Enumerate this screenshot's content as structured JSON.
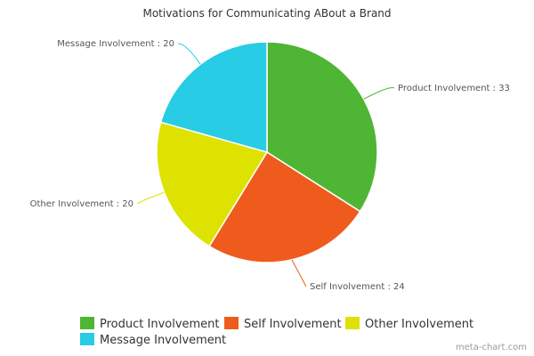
{
  "chart_data": {
    "type": "pie",
    "title": "Motivations for Communicating ABout a Brand",
    "slices": [
      {
        "label": "Product Involvement",
        "value": 33,
        "color": "#4fb534"
      },
      {
        "label": "Self Involvement",
        "value": 24,
        "color": "#ee5b1c"
      },
      {
        "label": "Other Involvement",
        "value": 20,
        "color": "#dde200"
      },
      {
        "label": "Message Involvement",
        "value": 20,
        "color": "#28cce4"
      }
    ],
    "slice_labels": [
      "Product Involvement : 33",
      "Self Involvement : 24",
      "Other Involvement : 20",
      "Message Involvement : 20"
    ],
    "legend": {
      "placement": "bottom",
      "entries": [
        "Product Involvement",
        "Self Involvement",
        "Other Involvement",
        "Message Involvement"
      ]
    }
  },
  "watermark": "meta-chart.com"
}
